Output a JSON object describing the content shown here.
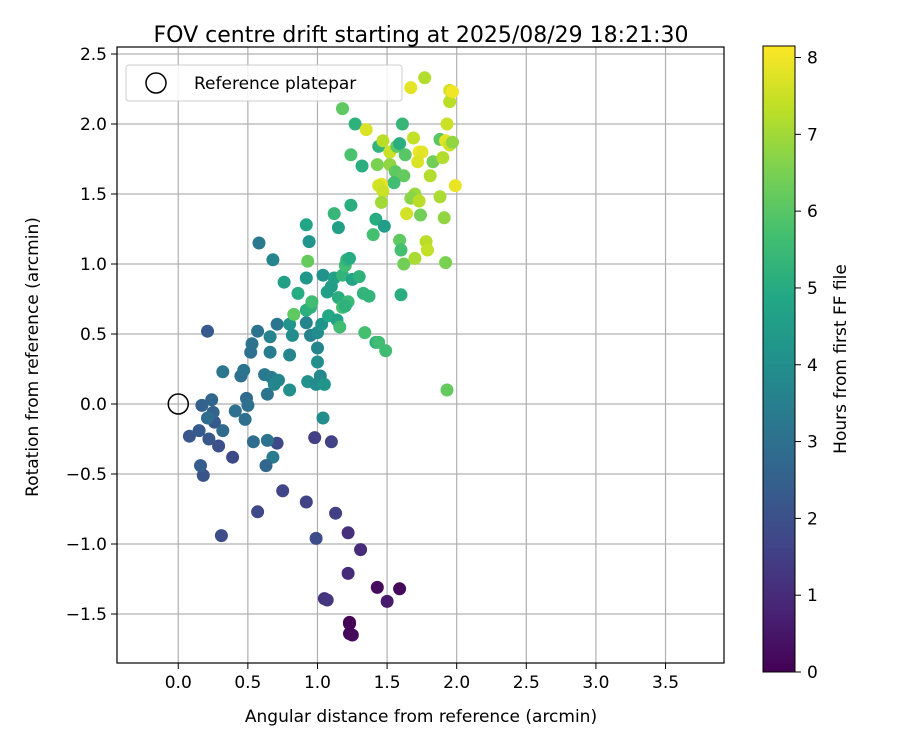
{
  "chart_data": {
    "type": "scatter",
    "title": "FOV centre drift starting at 2025/08/29 18:21:30",
    "xlabel": "Angular distance from reference (arcmin)",
    "ylabel": "Rotation from reference (arcmin)",
    "xlim": [
      -0.44,
      3.92
    ],
    "ylim": [
      -1.85,
      2.55
    ],
    "xticks": [
      0.0,
      0.5,
      1.0,
      1.5,
      2.0,
      2.5,
      3.0,
      3.5
    ],
    "xtick_labels": [
      "0.0",
      "0.5",
      "1.0",
      "1.5",
      "2.0",
      "2.5",
      "3.0",
      "3.5"
    ],
    "yticks": [
      -1.5,
      -1.0,
      -0.5,
      0.0,
      0.5,
      1.0,
      1.5,
      2.0,
      2.5
    ],
    "ytick_labels": [
      "−1.5",
      "−1.0",
      "−0.5",
      "0.0",
      "0.5",
      "1.0",
      "1.5",
      "2.0",
      "2.5"
    ],
    "grid": true,
    "legend": {
      "placement": "top-left",
      "entries": [
        "Reference platepar"
      ]
    },
    "reference_point": {
      "x": 0.0,
      "y": 0.0
    },
    "colorbar": {
      "label": "Hours from first FF file",
      "colormap": "viridis",
      "range": [
        0,
        8.15
      ],
      "ticks": [
        0,
        1,
        2,
        3,
        4,
        5,
        6,
        7,
        8
      ],
      "tick_labels": [
        "0",
        "1",
        "2",
        "3",
        "4",
        "5",
        "6",
        "7",
        "8"
      ]
    },
    "points": [
      {
        "x": 1.23,
        "y": -1.64,
        "h": 0.15
      },
      {
        "x": 1.25,
        "y": -1.65,
        "h": 0.2
      },
      {
        "x": 1.23,
        "y": -1.57,
        "h": 0.1
      },
      {
        "x": 1.43,
        "y": -1.31,
        "h": 0.25
      },
      {
        "x": 1.59,
        "y": -1.32,
        "h": 0.2
      },
      {
        "x": 1.5,
        "y": -1.41,
        "h": 0.6
      },
      {
        "x": 1.05,
        "y": -1.39,
        "h": 1.1
      },
      {
        "x": 1.07,
        "y": -1.4,
        "h": 1.3
      },
      {
        "x": 1.22,
        "y": -1.21,
        "h": 1.0
      },
      {
        "x": 1.31,
        "y": -1.04,
        "h": 1.0
      },
      {
        "x": 1.22,
        "y": -0.92,
        "h": 1.1
      },
      {
        "x": 1.13,
        "y": -0.78,
        "h": 1.5
      },
      {
        "x": 0.92,
        "y": -0.7,
        "h": 1.6
      },
      {
        "x": 0.75,
        "y": -0.62,
        "h": 1.7
      },
      {
        "x": 0.57,
        "y": -0.77,
        "h": 1.8
      },
      {
        "x": 0.31,
        "y": -0.94,
        "h": 1.9
      },
      {
        "x": 0.99,
        "y": -0.96,
        "h": 1.9
      },
      {
        "x": 0.98,
        "y": -0.24,
        "h": 1.5
      },
      {
        "x": 1.1,
        "y": -0.27,
        "h": 1.6
      },
      {
        "x": 0.71,
        "y": -0.28,
        "h": 1.8
      },
      {
        "x": 0.39,
        "y": -0.38,
        "h": 1.8
      },
      {
        "x": 0.18,
        "y": -0.51,
        "h": 2.1
      },
      {
        "x": 0.16,
        "y": -0.44,
        "h": 2.4
      },
      {
        "x": 0.08,
        "y": -0.23,
        "h": 2.2
      },
      {
        "x": 0.15,
        "y": -0.19,
        "h": 2.3
      },
      {
        "x": 0.22,
        "y": -0.25,
        "h": 2.2
      },
      {
        "x": 0.26,
        "y": -0.13,
        "h": 2.3
      },
      {
        "x": 0.29,
        "y": -0.3,
        "h": 2.0
      },
      {
        "x": 0.32,
        "y": -0.19,
        "h": 2.8
      },
      {
        "x": 0.17,
        "y": -0.01,
        "h": 2.5
      },
      {
        "x": 0.24,
        "y": 0.03,
        "h": 2.7
      },
      {
        "x": 0.25,
        "y": -0.06,
        "h": 2.6
      },
      {
        "x": 0.21,
        "y": -0.1,
        "h": 2.9
      },
      {
        "x": 0.41,
        "y": -0.05,
        "h": 3.0
      },
      {
        "x": 0.49,
        "y": 0.04,
        "h": 2.8
      },
      {
        "x": 0.48,
        "y": -0.11,
        "h": 3.0
      },
      {
        "x": 0.5,
        "y": -0.01,
        "h": 3.0
      },
      {
        "x": 0.45,
        "y": 0.2,
        "h": 3.0
      },
      {
        "x": 0.47,
        "y": 0.24,
        "h": 3.1
      },
      {
        "x": 0.32,
        "y": 0.23,
        "h": 3.2
      },
      {
        "x": 0.21,
        "y": 0.52,
        "h": 2.3
      },
      {
        "x": 0.54,
        "y": -0.27,
        "h": 2.9
      },
      {
        "x": 0.64,
        "y": -0.26,
        "h": 3.1
      },
      {
        "x": 0.68,
        "y": -0.38,
        "h": 3.4
      },
      {
        "x": 0.63,
        "y": -0.44,
        "h": 2.7
      },
      {
        "x": 0.52,
        "y": 0.37,
        "h": 3.0
      },
      {
        "x": 0.53,
        "y": 0.43,
        "h": 3.1
      },
      {
        "x": 0.57,
        "y": 0.52,
        "h": 3.1
      },
      {
        "x": 0.62,
        "y": 0.21,
        "h": 3.3
      },
      {
        "x": 0.64,
        "y": 0.07,
        "h": 3.1
      },
      {
        "x": 0.67,
        "y": 0.19,
        "h": 3.4
      },
      {
        "x": 0.69,
        "y": 0.14,
        "h": 3.7
      },
      {
        "x": 0.72,
        "y": 0.17,
        "h": 3.7
      },
      {
        "x": 0.66,
        "y": 0.37,
        "h": 3.4
      },
      {
        "x": 0.66,
        "y": 0.48,
        "h": 3.6
      },
      {
        "x": 0.71,
        "y": 0.57,
        "h": 3.2
      },
      {
        "x": 0.8,
        "y": 0.35,
        "h": 3.7
      },
      {
        "x": 0.8,
        "y": 0.1,
        "h": 4.0
      },
      {
        "x": 0.82,
        "y": 0.49,
        "h": 3.9
      },
      {
        "x": 0.8,
        "y": 0.57,
        "h": 4.2
      },
      {
        "x": 0.92,
        "y": 0.58,
        "h": 3.7
      },
      {
        "x": 0.95,
        "y": 0.49,
        "h": 3.6
      },
      {
        "x": 0.93,
        "y": 0.16,
        "h": 4.1
      },
      {
        "x": 0.99,
        "y": 0.14,
        "h": 3.9
      },
      {
        "x": 1.02,
        "y": 0.2,
        "h": 3.8
      },
      {
        "x": 1.05,
        "y": 0.14,
        "h": 4.2
      },
      {
        "x": 1.0,
        "y": 0.3,
        "h": 4.0
      },
      {
        "x": 1.0,
        "y": 0.4,
        "h": 3.7
      },
      {
        "x": 1.0,
        "y": 0.51,
        "h": 3.9
      },
      {
        "x": 1.03,
        "y": 0.57,
        "h": 4.2
      },
      {
        "x": 1.04,
        "y": -0.1,
        "h": 3.9
      },
      {
        "x": 0.58,
        "y": 1.15,
        "h": 3.3
      },
      {
        "x": 0.68,
        "y": 1.03,
        "h": 3.7
      },
      {
        "x": 0.76,
        "y": 0.87,
        "h": 4.6
      },
      {
        "x": 0.92,
        "y": 1.28,
        "h": 4.8
      },
      {
        "x": 0.94,
        "y": 1.16,
        "h": 4.2
      },
      {
        "x": 0.92,
        "y": 0.9,
        "h": 4.3
      },
      {
        "x": 0.86,
        "y": 0.79,
        "h": 5.0
      },
      {
        "x": 0.92,
        "y": 0.67,
        "h": 5.1
      },
      {
        "x": 0.95,
        "y": 0.69,
        "h": 5.2
      },
      {
        "x": 0.96,
        "y": 0.73,
        "h": 5.6
      },
      {
        "x": 0.83,
        "y": 0.64,
        "h": 6.1
      },
      {
        "x": 0.93,
        "y": 1.02,
        "h": 6.2
      },
      {
        "x": 1.04,
        "y": 0.92,
        "h": 4.1
      },
      {
        "x": 1.07,
        "y": 0.8,
        "h": 4.6
      },
      {
        "x": 1.1,
        "y": 0.84,
        "h": 4.5
      },
      {
        "x": 1.12,
        "y": 0.9,
        "h": 4.6
      },
      {
        "x": 1.08,
        "y": 0.63,
        "h": 4.9
      },
      {
        "x": 1.14,
        "y": 0.6,
        "h": 4.7
      },
      {
        "x": 1.16,
        "y": 0.55,
        "h": 5.6
      },
      {
        "x": 1.15,
        "y": 0.76,
        "h": 5.1
      },
      {
        "x": 1.18,
        "y": 0.92,
        "h": 5.3
      },
      {
        "x": 1.2,
        "y": 0.99,
        "h": 5.6
      },
      {
        "x": 1.21,
        "y": 1.03,
        "h": 5.3
      },
      {
        "x": 1.23,
        "y": 1.04,
        "h": 5.0
      },
      {
        "x": 1.22,
        "y": 0.73,
        "h": 5.5
      },
      {
        "x": 1.18,
        "y": 0.69,
        "h": 5.7
      },
      {
        "x": 1.2,
        "y": 0.7,
        "h": 5.2
      },
      {
        "x": 1.25,
        "y": 0.89,
        "h": 4.7
      },
      {
        "x": 1.3,
        "y": 0.91,
        "h": 5.2
      },
      {
        "x": 1.33,
        "y": 0.79,
        "h": 5.3
      },
      {
        "x": 1.37,
        "y": 0.77,
        "h": 5.3
      },
      {
        "x": 1.34,
        "y": 0.51,
        "h": 5.7
      },
      {
        "x": 1.42,
        "y": 0.44,
        "h": 5.2
      },
      {
        "x": 1.44,
        "y": 0.44,
        "h": 5.6
      },
      {
        "x": 1.49,
        "y": 0.38,
        "h": 5.6
      },
      {
        "x": 1.15,
        "y": 1.26,
        "h": 4.6
      },
      {
        "x": 1.12,
        "y": 1.36,
        "h": 5.4
      },
      {
        "x": 1.24,
        "y": 1.42,
        "h": 5.1
      },
      {
        "x": 1.4,
        "y": 1.21,
        "h": 5.7
      },
      {
        "x": 1.42,
        "y": 1.32,
        "h": 5.0
      },
      {
        "x": 1.48,
        "y": 1.27,
        "h": 4.5
      },
      {
        "x": 1.59,
        "y": 1.17,
        "h": 6.1
      },
      {
        "x": 1.6,
        "y": 1.1,
        "h": 5.7
      },
      {
        "x": 1.62,
        "y": 1.0,
        "h": 6.4
      },
      {
        "x": 1.6,
        "y": 0.78,
        "h": 5.1
      },
      {
        "x": 1.93,
        "y": 0.1,
        "h": 6.2
      },
      {
        "x": 1.24,
        "y": 1.78,
        "h": 5.8
      },
      {
        "x": 1.32,
        "y": 1.7,
        "h": 5.1
      },
      {
        "x": 1.18,
        "y": 2.11,
        "h": 6.1
      },
      {
        "x": 1.27,
        "y": 2.0,
        "h": 5.2
      },
      {
        "x": 1.35,
        "y": 1.96,
        "h": 7.7
      },
      {
        "x": 1.44,
        "y": 1.84,
        "h": 5.3
      },
      {
        "x": 1.47,
        "y": 1.88,
        "h": 7.3
      },
      {
        "x": 1.52,
        "y": 1.8,
        "h": 7.5
      },
      {
        "x": 1.57,
        "y": 1.84,
        "h": 6.1
      },
      {
        "x": 1.59,
        "y": 1.86,
        "h": 5.1
      },
      {
        "x": 1.61,
        "y": 2.0,
        "h": 5.4
      },
      {
        "x": 1.63,
        "y": 1.78,
        "h": 6.0
      },
      {
        "x": 1.69,
        "y": 1.9,
        "h": 7.4
      },
      {
        "x": 1.73,
        "y": 1.8,
        "h": 8.0
      },
      {
        "x": 1.75,
        "y": 1.8,
        "h": 7.8
      },
      {
        "x": 1.72,
        "y": 1.73,
        "h": 7.7
      },
      {
        "x": 1.67,
        "y": 2.26,
        "h": 7.8
      },
      {
        "x": 1.77,
        "y": 2.33,
        "h": 7.2
      },
      {
        "x": 1.43,
        "y": 1.71,
        "h": 6.5
      },
      {
        "x": 1.52,
        "y": 1.71,
        "h": 6.8
      },
      {
        "x": 1.56,
        "y": 1.66,
        "h": 6.1
      },
      {
        "x": 1.62,
        "y": 1.63,
        "h": 6.2
      },
      {
        "x": 1.55,
        "y": 1.58,
        "h": 5.6
      },
      {
        "x": 1.46,
        "y": 1.57,
        "h": 7.9
      },
      {
        "x": 1.44,
        "y": 1.56,
        "h": 7.6
      },
      {
        "x": 1.47,
        "y": 1.52,
        "h": 7.5
      },
      {
        "x": 1.46,
        "y": 1.44,
        "h": 7.0
      },
      {
        "x": 1.64,
        "y": 1.36,
        "h": 7.6
      },
      {
        "x": 1.7,
        "y": 1.5,
        "h": 6.9
      },
      {
        "x": 1.67,
        "y": 1.47,
        "h": 6.7
      },
      {
        "x": 1.73,
        "y": 1.45,
        "h": 7.3
      },
      {
        "x": 1.74,
        "y": 1.35,
        "h": 6.4
      },
      {
        "x": 1.78,
        "y": 1.16,
        "h": 7.3
      },
      {
        "x": 1.79,
        "y": 1.1,
        "h": 7.4
      },
      {
        "x": 1.7,
        "y": 1.04,
        "h": 7.1
      },
      {
        "x": 1.92,
        "y": 1.01,
        "h": 6.5
      },
      {
        "x": 1.91,
        "y": 1.33,
        "h": 6.8
      },
      {
        "x": 1.88,
        "y": 1.48,
        "h": 7.1
      },
      {
        "x": 1.81,
        "y": 1.63,
        "h": 7.2
      },
      {
        "x": 1.83,
        "y": 1.73,
        "h": 6.4
      },
      {
        "x": 1.9,
        "y": 1.76,
        "h": 7.2
      },
      {
        "x": 1.88,
        "y": 1.89,
        "h": 6.0
      },
      {
        "x": 1.92,
        "y": 1.88,
        "h": 7.8
      },
      {
        "x": 1.95,
        "y": 1.85,
        "h": 7.5
      },
      {
        "x": 1.97,
        "y": 1.87,
        "h": 6.8
      },
      {
        "x": 1.93,
        "y": 2.0,
        "h": 7.5
      },
      {
        "x": 1.95,
        "y": 2.16,
        "h": 7.3
      },
      {
        "x": 1.95,
        "y": 2.24,
        "h": 7.6
      },
      {
        "x": 1.97,
        "y": 2.23,
        "h": 8.0
      },
      {
        "x": 1.99,
        "y": 1.56,
        "h": 7.9
      },
      {
        "x": 1.23,
        "y": -1.56,
        "h": 0.05
      }
    ]
  }
}
